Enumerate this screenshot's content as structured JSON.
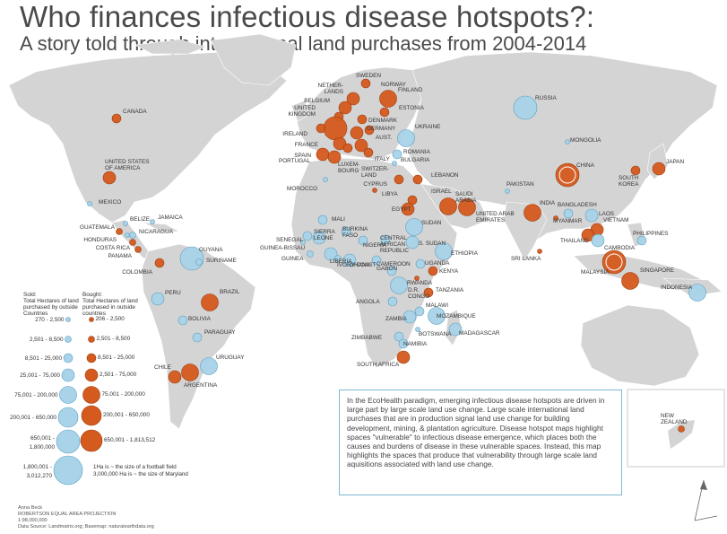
{
  "title": "Who finances infectious disease hotspots?:",
  "subtitle": "A story told through international land purchases from 2004-2014",
  "colors": {
    "land": "#d4d4d4",
    "ocean": "#ffffff",
    "sold": "#a8d3e8",
    "sold_stroke": "#5a9ec2",
    "bought": "#d45a1e",
    "bought_stroke": "#9b3a0e",
    "box_border": "#7fb6d6"
  },
  "legend": {
    "sold_header": "Sold:\nTotal Hectares of land\npurchased by outside\nCountries",
    "bought_header": "Bought:\nTotal Hectares of land\npurchased in outside\ncountries",
    "sold_ranges": [
      "270 - 2,500",
      "2,501 - 8,500",
      "8,501 - 25,000",
      "25,001 - 75,000",
      "75,001 - 200,000",
      "200,001 - 650,000",
      "650,001 -\n1,800,000",
      "1,800,001 -\n3,012,270"
    ],
    "bought_ranges": [
      "206 - 2,500",
      "2,501 - 8,500",
      "8,501 - 25,000",
      "2,501 - 75,000",
      "75,001 - 200,000",
      "200,001 - 650,000",
      "650,001 - 1,813,512"
    ],
    "scale_note": "1Ha is ~ the size of a football field\n3,000,000 Ha is ~ the size of Maryland"
  },
  "note": "In the EcoHealth paradigm, emerging infectious  disease hotspots are driven in large part by large scale land use change. Large scale international land purchases that are in production signal land use change for building development, mining, & plantation agriculture. Disease hotspot maps highlight spaces \"vulnerable\" to infectious disease emergence, which places both the causes and burdens of disease in these vulnerable spaces. Instead, this map highlights the spaces that produce that vulnerability through large scale land aquisitions associated with land use change.",
  "credits": [
    "Anna Beck",
    "ROBERTSON EQUAL AREA PROJECTION",
    "1:98,000,000",
    "Data Source: Landmatrix.org; Basemap: naturalearthdata.org"
  ],
  "inset_label": "NEW\nZEALAND",
  "countries": [
    {
      "name": "CANADA",
      "type": "bought",
      "level": 3
    },
    {
      "name": "UNITED STATES\nOF AMERICA",
      "type": "bought",
      "level": 4
    },
    {
      "name": "MEXICO",
      "type": "sold",
      "level": 1
    },
    {
      "name": "GUATEMALA",
      "type": "bought",
      "level": 2
    },
    {
      "name": "BELIZE",
      "type": "sold",
      "level": 1
    },
    {
      "name": "JAMAICA",
      "type": "sold",
      "level": 1
    },
    {
      "name": "HONDURAS",
      "type": "sold",
      "level": 1
    },
    {
      "name": "NICARAGUA",
      "type": "sold",
      "level": 2
    },
    {
      "name": "COSTA RICA",
      "type": "bought",
      "level": 2
    },
    {
      "name": "PANAMA",
      "type": "bought",
      "level": 2
    },
    {
      "name": "COLOMBIA",
      "type": "bought",
      "level": 3
    },
    {
      "name": "GUYANA",
      "type": "sold",
      "level": 6
    },
    {
      "name": "SURINAME",
      "type": "sold",
      "level": 2
    },
    {
      "name": "PERU",
      "type": "sold",
      "level": 4
    },
    {
      "name": "BRAZIL",
      "type": "bought",
      "level": 5
    },
    {
      "name": "BOLIVIA",
      "type": "sold",
      "level": 3
    },
    {
      "name": "PARAGUAY",
      "type": "sold",
      "level": 3
    },
    {
      "name": "CHILE",
      "type": "bought",
      "level": 4
    },
    {
      "name": "URUGUAY",
      "type": "sold",
      "level": 5
    },
    {
      "name": "ARGENTINA",
      "type": "bought",
      "level": 5
    },
    {
      "name": "SWEDEN",
      "type": "bought",
      "level": 3
    },
    {
      "name": "NORWAY",
      "type": "bought",
      "level": 4
    },
    {
      "name": "FINLAND",
      "type": "bought",
      "level": 5
    },
    {
      "name": "NETHER-\nLANDS",
      "type": "bought",
      "level": 4
    },
    {
      "name": "BELGIUM",
      "type": "bought",
      "level": 3
    },
    {
      "name": "UNITED\nKINGDOM",
      "type": "bought",
      "level": 6
    },
    {
      "name": "DENMARK",
      "type": "bought",
      "level": 3
    },
    {
      "name": "ESTONIA",
      "type": "bought",
      "level": 3
    },
    {
      "name": "IRELAND",
      "type": "bought",
      "level": 3
    },
    {
      "name": "GERMANY",
      "type": "bought",
      "level": 4
    },
    {
      "name": "AUST.",
      "type": "bought",
      "level": 3
    },
    {
      "name": "FRANCE",
      "type": "bought",
      "level": 4
    },
    {
      "name": "PORTUGAL",
      "type": "bought",
      "level": 4
    },
    {
      "name": "SPAIN",
      "type": "bought",
      "level": 4
    },
    {
      "name": "LUXEM-\nBOURG",
      "type": "bought",
      "level": 3
    },
    {
      "name": "SWITZER-\nLAND",
      "type": "bought",
      "level": 4
    },
    {
      "name": "ITALY",
      "type": "bought",
      "level": 3
    },
    {
      "name": "UKRAINE",
      "type": "sold",
      "level": 5
    },
    {
      "name": "ROMANIA",
      "type": "sold",
      "level": 3
    },
    {
      "name": "BULGARIA",
      "type": "sold",
      "level": 1
    },
    {
      "name": "RUSSIA",
      "type": "sold",
      "level": 6
    },
    {
      "name": "MONGOLIA",
      "type": "sold",
      "level": 1
    },
    {
      "name": "CHINA",
      "type": "bought",
      "level": 6
    },
    {
      "name": "JAPAN",
      "type": "bought",
      "level": 4
    },
    {
      "name": "SOUTH\nKOREA",
      "type": "bought",
      "level": 3
    },
    {
      "name": "MOROCCO",
      "type": "sold",
      "level": 1
    },
    {
      "name": "CYPRUS",
      "type": "bought",
      "level": 3
    },
    {
      "name": "LIBYA",
      "type": "bought",
      "level": 1
    },
    {
      "name": "LEBANON",
      "type": "bought",
      "level": 3
    },
    {
      "name": "ISRAEL",
      "type": "bought",
      "level": 3
    },
    {
      "name": "EGYPT",
      "type": "bought",
      "level": 4
    },
    {
      "name": "SAUDI\nARABIA",
      "type": "bought",
      "level": 5
    },
    {
      "name": "UNITED ARAB\nEMIRATES",
      "type": "bought",
      "level": 5
    },
    {
      "name": "PAKISTAN",
      "type": "sold",
      "level": 1
    },
    {
      "name": "INDIA",
      "type": "bought",
      "level": 5
    },
    {
      "name": "BANGLADESH",
      "type": "bought",
      "level": 1
    },
    {
      "name": "MYANMAR",
      "type": "sold",
      "level": 3
    },
    {
      "name": "LAOS",
      "type": "sold",
      "level": 4
    },
    {
      "name": "VIETNAM",
      "type": "bought",
      "level": 4
    },
    {
      "name": "THAILAND",
      "type": "bought",
      "level": 4
    },
    {
      "name": "CAMBODIA",
      "type": "sold",
      "level": 4
    },
    {
      "name": "PHILIPPINES",
      "type": "sold",
      "level": 3
    },
    {
      "name": "MALAYSIA",
      "type": "bought",
      "level": 6
    },
    {
      "name": "SINGAPORE",
      "type": "bought",
      "level": 5
    },
    {
      "name": "INDONESIA",
      "type": "sold",
      "level": 5
    },
    {
      "name": "SRI LANKA",
      "type": "bought",
      "level": 1
    },
    {
      "name": "MALI",
      "type": "sold",
      "level": 3
    },
    {
      "name": "SUDAN",
      "type": "sold",
      "level": 5
    },
    {
      "name": "SENEGAL",
      "type": "sold",
      "level": 3
    },
    {
      "name": "GUINEA-BISSAU",
      "type": "sold",
      "level": 1
    },
    {
      "name": "GUINEA",
      "type": "sold",
      "level": 2
    },
    {
      "name": "SIERRA\nLEONE",
      "type": "sold",
      "level": 4
    },
    {
      "name": "BURKINA\nFASO",
      "type": "sold",
      "level": 3
    },
    {
      "name": "LIBERIA",
      "type": "sold",
      "level": 4
    },
    {
      "name": "IVORY COAST",
      "type": "sold",
      "level": 2
    },
    {
      "name": "GHANA",
      "type": "sold",
      "level": 4
    },
    {
      "name": "NIGERIA",
      "type": "sold",
      "level": 3
    },
    {
      "name": "CAMEROON",
      "type": "sold",
      "level": 3
    },
    {
      "name": "CENTRAL\nAFRICAN\nREPUBLIC",
      "type": "sold",
      "level": 3
    },
    {
      "name": "S. SUDAN",
      "type": "sold",
      "level": 4
    },
    {
      "name": "ETHIOPIA",
      "type": "sold",
      "level": 5
    },
    {
      "name": "UGANDA",
      "type": "sold",
      "level": 3
    },
    {
      "name": "KENYA",
      "type": "bought",
      "level": 3
    },
    {
      "name": "GABON",
      "type": "sold",
      "level": 3
    },
    {
      "name": "RWANDA",
      "type": "bought",
      "level": 1
    },
    {
      "name": "D.R.\nCONGO",
      "type": "sold",
      "level": 5
    },
    {
      "name": "TANZANIA",
      "type": "bought",
      "level": 3
    },
    {
      "name": "ANGOLA",
      "type": "sold",
      "level": 3
    },
    {
      "name": "MALAWI",
      "type": "sold",
      "level": 3
    },
    {
      "name": "ZAMBIA",
      "type": "sold",
      "level": 4
    },
    {
      "name": "MOZAMBIQUE",
      "type": "sold",
      "level": 5
    },
    {
      "name": "ZIMBABWE",
      "type": "sold",
      "level": 3
    },
    {
      "name": "BOTSWANA",
      "type": "sold",
      "level": 1
    },
    {
      "name": "MADAGASCAR",
      "type": "sold",
      "level": 4
    },
    {
      "name": "NAMIBIA",
      "type": "sold",
      "level": 3
    },
    {
      "name": "SOUTH AFRICA",
      "type": "bought",
      "level": 4
    },
    {
      "name": "NEW\nZEALAND",
      "type": "bought",
      "level": 2
    }
  ]
}
